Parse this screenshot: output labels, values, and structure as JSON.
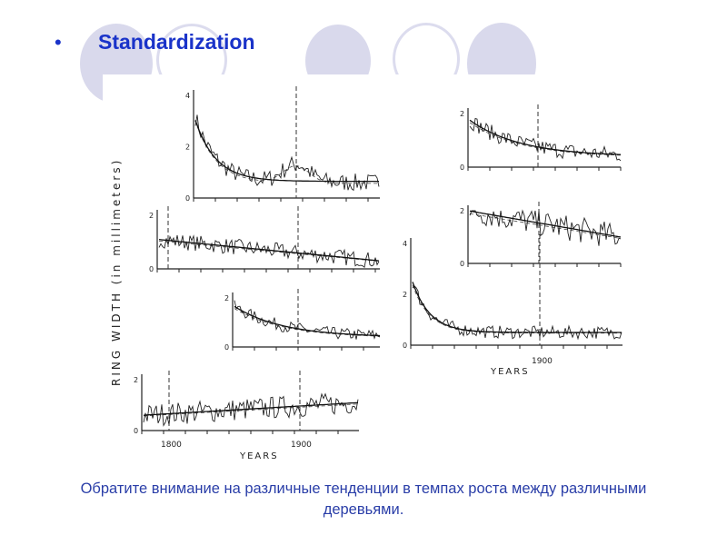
{
  "slide": {
    "bullet": "•",
    "title": "Standardization",
    "caption": "Обратите внимание на различные тенденции в темпах роста между различными деревьями."
  },
  "figure": {
    "y_axis_label": "RING WIDTH (in millimeters)",
    "x_axis_label": "YEARS",
    "year_ticks": [
      "1800",
      "1900"
    ],
    "tick_labels": {
      "zero": "0",
      "two": "2",
      "four": "4"
    }
  },
  "colors": {
    "title": "#1a33c9",
    "caption": "#2a3ea8",
    "decor": "#d9d9ec"
  }
}
